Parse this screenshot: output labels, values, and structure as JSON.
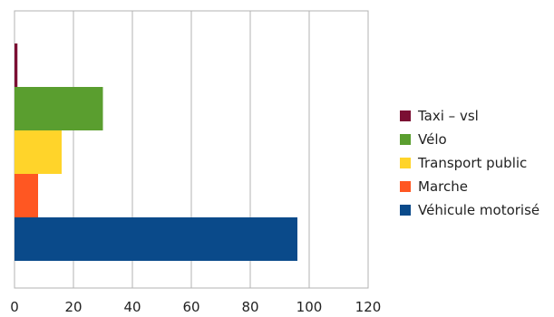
{
  "chart_data": {
    "type": "bar",
    "orientation": "horizontal",
    "title": "",
    "xlabel": "",
    "ylabel": "",
    "xlim": [
      0,
      120
    ],
    "x_ticks": [
      0,
      20,
      40,
      60,
      80,
      100,
      120
    ],
    "grid": true,
    "legend_position": "right",
    "series": [
      {
        "name": "Taxi – vsl",
        "value": 1,
        "color": "#7b0f33"
      },
      {
        "name": "Vélo",
        "value": 30,
        "color": "#5a9e2f"
      },
      {
        "name": "Transport public",
        "value": 16,
        "color": "#ffd42a"
      },
      {
        "name": "Marche",
        "value": 8,
        "color": "#ff5722"
      },
      {
        "name": "Véhicule motorisé",
        "value": 96,
        "color": "#0a4a8a"
      }
    ]
  }
}
